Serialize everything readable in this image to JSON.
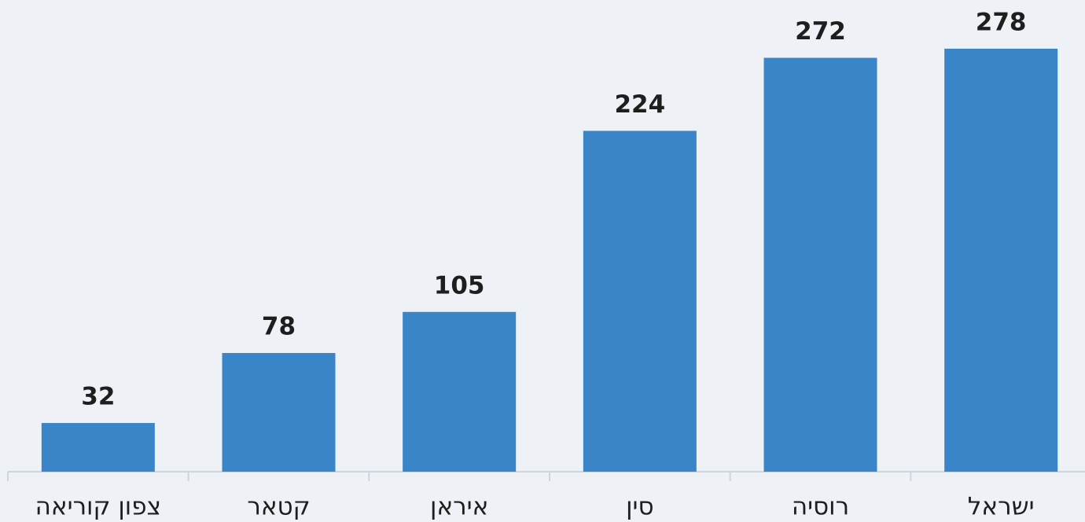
{
  "chart_data": {
    "type": "bar",
    "categories": [
      "צפון קוריאה",
      "קטאר",
      "איראן",
      "סין",
      "רוסיה",
      "ישראל"
    ],
    "values": [
      32,
      78,
      105,
      224,
      272,
      278
    ],
    "color": "#3a84c8",
    "ylim": [
      0,
      310
    ]
  }
}
